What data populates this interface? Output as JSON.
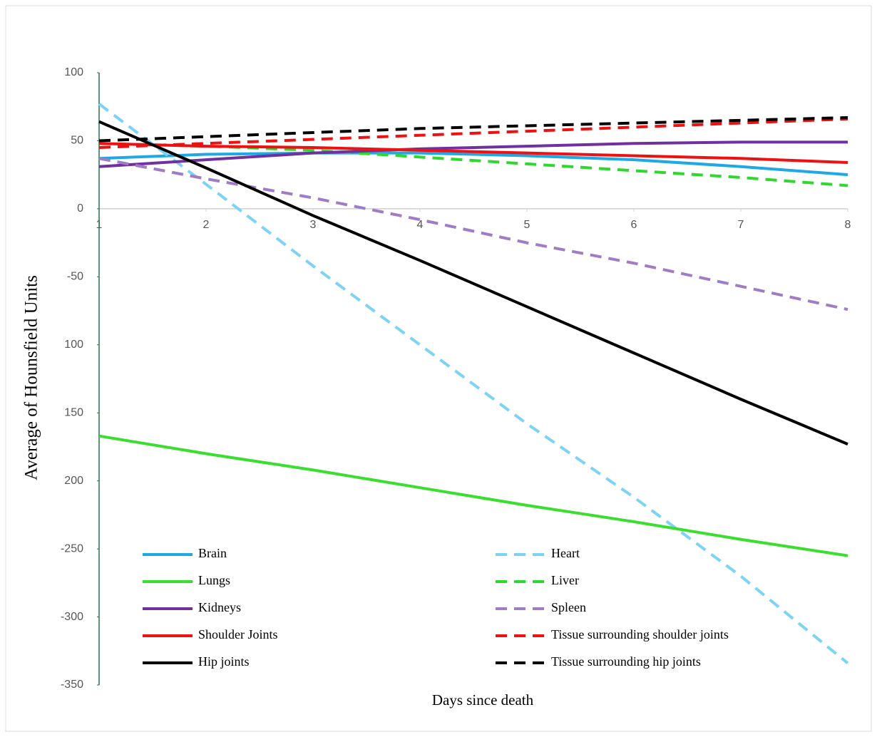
{
  "chart_data": {
    "type": "line",
    "xlabel": "Days since death",
    "ylabel": "Average of Hounsfield Units",
    "x": [
      1,
      2,
      3,
      4,
      5,
      6,
      7,
      8
    ],
    "xlim": [
      1,
      8
    ],
    "xticks": [
      1,
      2,
      3,
      4,
      5,
      6,
      7,
      8
    ],
    "ylim": [
      -350,
      100
    ],
    "yticks": [
      100,
      50,
      0,
      -50,
      {
        "value": -100,
        "label": "100"
      },
      {
        "value": -150,
        "label": "150"
      },
      {
        "value": -200,
        "label": "200"
      },
      -250,
      -300,
      -350
    ],
    "series": [
      {
        "name": "Brain",
        "color": "#1ea8e4",
        "style": "solid",
        "values": [
          37,
          40,
          41,
          41,
          39,
          36,
          31,
          25
        ]
      },
      {
        "name": "Heart",
        "color": "#7dd3f3",
        "style": "dashed",
        "values": [
          77,
          18,
          -42,
          -100,
          -158,
          -212,
          -270,
          -334
        ]
      },
      {
        "name": "Lungs",
        "color": "#3ade2e",
        "style": "solid",
        "values": [
          -167,
          -180,
          -192,
          -205,
          -218,
          -230,
          -243,
          -255
        ]
      },
      {
        "name": "Liver",
        "color": "#2ed82e",
        "style": "dashed",
        "values": [
          48,
          46,
          43,
          38,
          33,
          28,
          23,
          17
        ]
      },
      {
        "name": "Kidneys",
        "color": "#7030a0",
        "style": "solid",
        "values": [
          31,
          36,
          41,
          44,
          46,
          48,
          49,
          49
        ]
      },
      {
        "name": "Spleen",
        "color": "#a07cc5",
        "style": "dashed",
        "values": [
          37,
          22,
          8,
          -8,
          -25,
          -40,
          -57,
          -74
        ]
      },
      {
        "name": "Shoulder Joints",
        "color": "#ee1111",
        "style": "solid",
        "values": [
          48,
          46,
          45,
          43,
          41,
          39,
          37,
          34
        ]
      },
      {
        "name": "Tissue surrounding  shoulder  joints",
        "color": "#ee1111",
        "style": "dashed",
        "values": [
          45,
          48,
          51,
          54,
          57,
          60,
          63,
          66
        ]
      },
      {
        "name": "Hip joints",
        "color": "#000000",
        "style": "solid",
        "values": [
          64,
          30,
          -5,
          -38,
          -72,
          -106,
          -140,
          -173
        ]
      },
      {
        "name": "Tissue surrounding hip joints",
        "color": "#000000",
        "style": "dashed",
        "values": [
          50,
          53,
          56,
          59,
          61,
          63,
          65,
          67
        ]
      }
    ]
  }
}
